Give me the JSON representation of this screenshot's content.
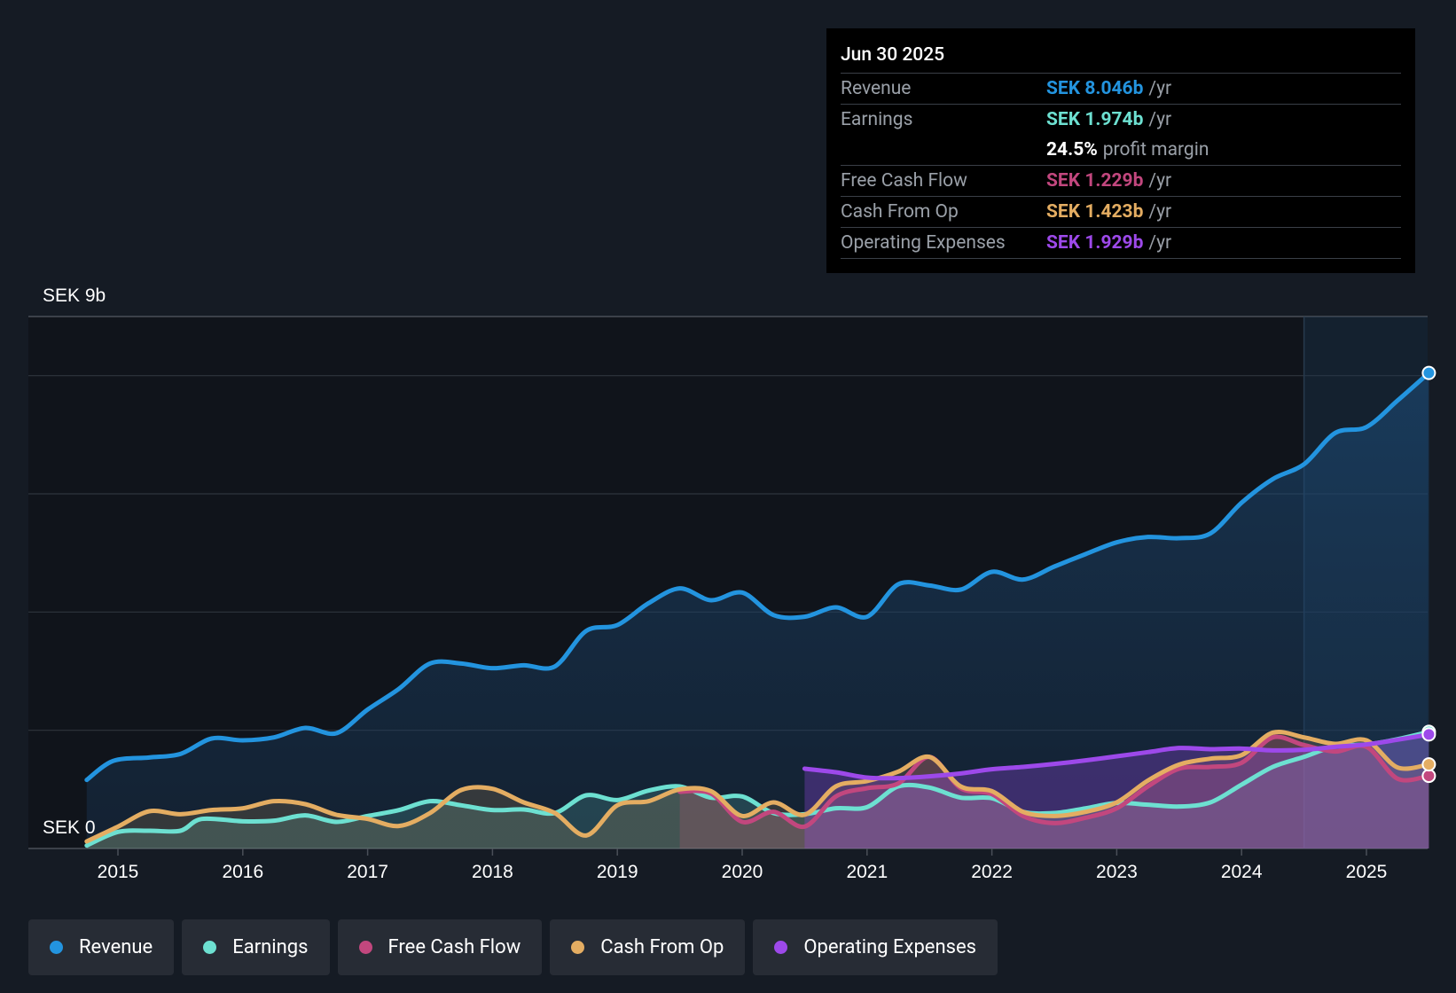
{
  "colors": {
    "revenue": "#2394df",
    "earnings": "#6de0d1",
    "fcf": "#c2477e",
    "cfo": "#e4ad62",
    "opex": "#9d49ea"
  },
  "tooltip": {
    "date": "Jun 30 2025",
    "rows": [
      {
        "label": "Revenue",
        "value": "SEK 8.046b",
        "unit": "/yr"
      },
      {
        "label": "Earnings",
        "value": "SEK 1.974b",
        "unit": "/yr"
      },
      {
        "label": "",
        "value": "24.5%",
        "unit": "profit margin"
      },
      {
        "label": "Free Cash Flow",
        "value": "SEK 1.229b",
        "unit": "/yr"
      },
      {
        "label": "Cash From Op",
        "value": "SEK 1.423b",
        "unit": "/yr"
      },
      {
        "label": "Operating Expenses",
        "value": "SEK 1.929b",
        "unit": "/yr"
      }
    ]
  },
  "legend": [
    "Revenue",
    "Earnings",
    "Free Cash Flow",
    "Cash From Op",
    "Operating Expenses"
  ],
  "chart_data": {
    "type": "line",
    "title": "",
    "y_top_label": "SEK 9b",
    "y_zero_label": "SEK 0",
    "ylim": [
      0,
      9
    ],
    "xlim": [
      2014.75,
      2025.5
    ],
    "x_ticks": [
      "2015",
      "2016",
      "2017",
      "2018",
      "2019",
      "2020",
      "2021",
      "2022",
      "2023",
      "2024",
      "2025"
    ],
    "forecast_start": 2024.5,
    "series": [
      {
        "name": "Revenue",
        "key": "revenue",
        "points": [
          [
            2014.75,
            1.16
          ],
          [
            2014.96,
            1.48
          ],
          [
            2015.25,
            1.54
          ],
          [
            2015.5,
            1.6
          ],
          [
            2015.75,
            1.86
          ],
          [
            2016,
            1.83
          ],
          [
            2016.25,
            1.88
          ],
          [
            2016.5,
            2.04
          ],
          [
            2016.75,
            1.95
          ],
          [
            2017,
            2.35
          ],
          [
            2017.25,
            2.7
          ],
          [
            2017.5,
            3.13
          ],
          [
            2017.75,
            3.13
          ],
          [
            2018,
            3.05
          ],
          [
            2018.25,
            3.1
          ],
          [
            2018.5,
            3.08
          ],
          [
            2018.75,
            3.68
          ],
          [
            2019,
            3.78
          ],
          [
            2019.25,
            4.15
          ],
          [
            2019.5,
            4.4
          ],
          [
            2019.75,
            4.2
          ],
          [
            2020,
            4.33
          ],
          [
            2020.25,
            3.95
          ],
          [
            2020.5,
            3.92
          ],
          [
            2020.75,
            4.08
          ],
          [
            2021,
            3.92
          ],
          [
            2021.25,
            4.47
          ],
          [
            2021.5,
            4.45
          ],
          [
            2021.75,
            4.38
          ],
          [
            2022,
            4.68
          ],
          [
            2022.25,
            4.55
          ],
          [
            2022.5,
            4.77
          ],
          [
            2022.75,
            4.98
          ],
          [
            2023,
            5.18
          ],
          [
            2023.25,
            5.27
          ],
          [
            2023.5,
            5.25
          ],
          [
            2023.75,
            5.33
          ],
          [
            2024,
            5.85
          ],
          [
            2024.25,
            6.25
          ],
          [
            2024.5,
            6.5
          ],
          [
            2024.75,
            7.03
          ],
          [
            2025,
            7.13
          ],
          [
            2025.25,
            7.58
          ],
          [
            2025.5,
            8.046
          ]
        ]
      },
      {
        "name": "Earnings",
        "key": "earnings",
        "points": [
          [
            2014.75,
            0.05
          ],
          [
            2015,
            0.28
          ],
          [
            2015.25,
            0.3
          ],
          [
            2015.5,
            0.3
          ],
          [
            2015.67,
            0.5
          ],
          [
            2016,
            0.46
          ],
          [
            2016.25,
            0.47
          ],
          [
            2016.5,
            0.56
          ],
          [
            2016.75,
            0.45
          ],
          [
            2017,
            0.55
          ],
          [
            2017.25,
            0.65
          ],
          [
            2017.5,
            0.8
          ],
          [
            2017.75,
            0.73
          ],
          [
            2018,
            0.65
          ],
          [
            2018.25,
            0.66
          ],
          [
            2018.5,
            0.6
          ],
          [
            2018.75,
            0.9
          ],
          [
            2019,
            0.82
          ],
          [
            2019.25,
            0.98
          ],
          [
            2019.5,
            1.05
          ],
          [
            2019.75,
            0.86
          ],
          [
            2020,
            0.88
          ],
          [
            2020.25,
            0.6
          ],
          [
            2020.5,
            0.58
          ],
          [
            2020.75,
            0.68
          ],
          [
            2021,
            0.7
          ],
          [
            2021.25,
            1.05
          ],
          [
            2021.5,
            1.03
          ],
          [
            2021.75,
            0.86
          ],
          [
            2022,
            0.85
          ],
          [
            2022.25,
            0.62
          ],
          [
            2022.5,
            0.6
          ],
          [
            2022.75,
            0.68
          ],
          [
            2023,
            0.77
          ],
          [
            2023.25,
            0.74
          ],
          [
            2023.5,
            0.71
          ],
          [
            2023.75,
            0.78
          ],
          [
            2024,
            1.08
          ],
          [
            2024.25,
            1.38
          ],
          [
            2024.5,
            1.55
          ],
          [
            2024.75,
            1.73
          ],
          [
            2025,
            1.76
          ],
          [
            2025.25,
            1.85
          ],
          [
            2025.5,
            1.974
          ]
        ]
      },
      {
        "name": "Free Cash Flow",
        "key": "fcf",
        "points": [
          [
            2019.5,
            0.96
          ],
          [
            2019.75,
            0.93
          ],
          [
            2020,
            0.45
          ],
          [
            2020.25,
            0.62
          ],
          [
            2020.5,
            0.37
          ],
          [
            2020.75,
            0.88
          ],
          [
            2021,
            1.02
          ],
          [
            2021.25,
            1.1
          ],
          [
            2021.5,
            1.55
          ],
          [
            2021.75,
            1.02
          ],
          [
            2022,
            0.92
          ],
          [
            2022.25,
            0.55
          ],
          [
            2022.5,
            0.43
          ],
          [
            2022.75,
            0.52
          ],
          [
            2023,
            0.68
          ],
          [
            2023.25,
            1.05
          ],
          [
            2023.5,
            1.35
          ],
          [
            2023.75,
            1.38
          ],
          [
            2024,
            1.45
          ],
          [
            2024.25,
            1.88
          ],
          [
            2024.5,
            1.75
          ],
          [
            2024.75,
            1.64
          ],
          [
            2025,
            1.72
          ],
          [
            2025.25,
            1.18
          ],
          [
            2025.5,
            1.229
          ]
        ]
      },
      {
        "name": "Cash From Op",
        "key": "cfo",
        "points": [
          [
            2014.75,
            0.12
          ],
          [
            2015,
            0.37
          ],
          [
            2015.25,
            0.63
          ],
          [
            2015.5,
            0.58
          ],
          [
            2015.75,
            0.65
          ],
          [
            2016,
            0.68
          ],
          [
            2016.25,
            0.8
          ],
          [
            2016.5,
            0.75
          ],
          [
            2016.75,
            0.57
          ],
          [
            2017,
            0.5
          ],
          [
            2017.25,
            0.38
          ],
          [
            2017.5,
            0.6
          ],
          [
            2017.75,
            0.99
          ],
          [
            2018,
            1.01
          ],
          [
            2018.25,
            0.78
          ],
          [
            2018.5,
            0.6
          ],
          [
            2018.75,
            0.22
          ],
          [
            2019,
            0.73
          ],
          [
            2019.25,
            0.8
          ],
          [
            2019.5,
            1.0
          ],
          [
            2019.75,
            0.97
          ],
          [
            2020,
            0.55
          ],
          [
            2020.25,
            0.78
          ],
          [
            2020.5,
            0.57
          ],
          [
            2020.75,
            1.05
          ],
          [
            2021,
            1.14
          ],
          [
            2021.25,
            1.3
          ],
          [
            2021.5,
            1.55
          ],
          [
            2021.75,
            1.05
          ],
          [
            2022,
            0.97
          ],
          [
            2022.25,
            0.62
          ],
          [
            2022.5,
            0.55
          ],
          [
            2022.75,
            0.62
          ],
          [
            2023,
            0.78
          ],
          [
            2023.25,
            1.15
          ],
          [
            2023.5,
            1.42
          ],
          [
            2023.75,
            1.52
          ],
          [
            2024,
            1.58
          ],
          [
            2024.25,
            1.96
          ],
          [
            2024.5,
            1.88
          ],
          [
            2024.75,
            1.77
          ],
          [
            2025,
            1.83
          ],
          [
            2025.25,
            1.37
          ],
          [
            2025.5,
            1.423
          ]
        ]
      },
      {
        "name": "Operating Expenses",
        "key": "opex",
        "points": [
          [
            2020.5,
            1.35
          ],
          [
            2020.75,
            1.29
          ],
          [
            2021,
            1.2
          ],
          [
            2021.25,
            1.19
          ],
          [
            2021.5,
            1.22
          ],
          [
            2021.75,
            1.27
          ],
          [
            2022,
            1.34
          ],
          [
            2022.25,
            1.38
          ],
          [
            2022.5,
            1.43
          ],
          [
            2022.75,
            1.49
          ],
          [
            2023,
            1.56
          ],
          [
            2023.25,
            1.63
          ],
          [
            2023.5,
            1.7
          ],
          [
            2023.75,
            1.68
          ],
          [
            2024,
            1.69
          ],
          [
            2024.25,
            1.66
          ],
          [
            2024.5,
            1.67
          ],
          [
            2024.75,
            1.72
          ],
          [
            2025,
            1.76
          ],
          [
            2025.25,
            1.84
          ],
          [
            2025.5,
            1.929
          ]
        ]
      }
    ]
  }
}
